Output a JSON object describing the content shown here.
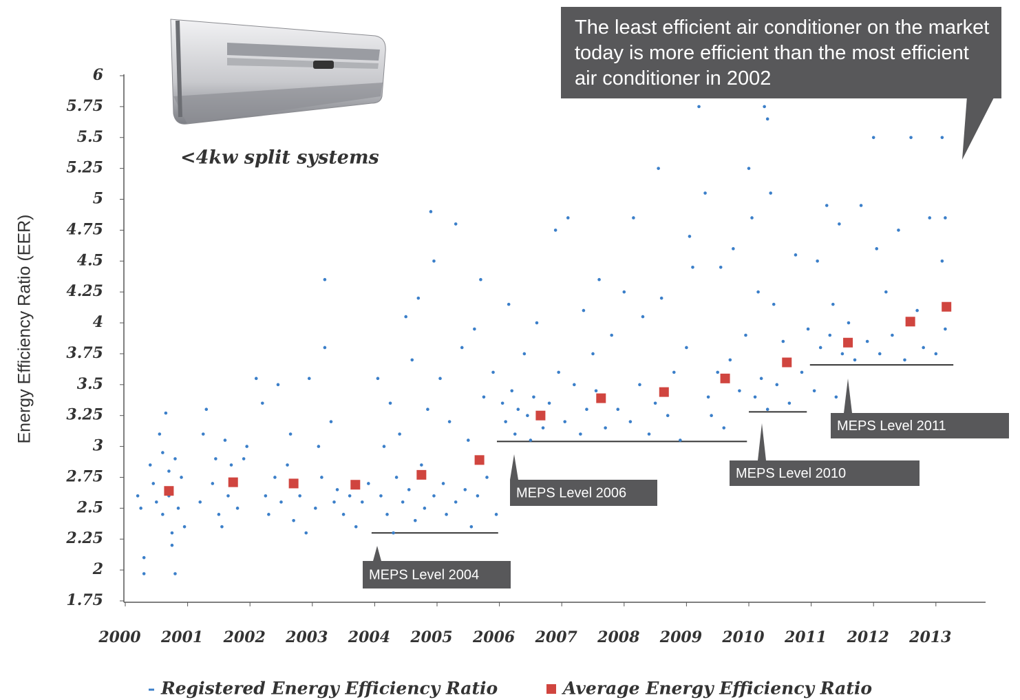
{
  "chart_data": {
    "type": "scatter",
    "annotation": "<4kw split systems",
    "callout": "The least efficient air conditioner on the market today is more efficient than the most efficient air conditioner in 2002",
    "y_label": "Energy Efficiency Ratio (EER)",
    "xlim": [
      2000,
      2013.8
    ],
    "xticks": [
      2000,
      2001,
      2002,
      2003,
      2004,
      2005,
      2006,
      2007,
      2008,
      2009,
      2010,
      2011,
      2012,
      2013
    ],
    "ylim": [
      1.75,
      6
    ],
    "yticks": [
      1.75,
      2,
      2.25,
      2.5,
      2.75,
      3,
      3.25,
      3.5,
      3.75,
      4,
      4.25,
      4.5,
      4.75,
      5,
      5.25,
      5.5,
      5.75,
      6
    ],
    "series": [
      {
        "name": "Registered Energy Efficiency Ratio",
        "color": "#3b7fc9",
        "marker": "dot",
        "x": [
          2000.2,
          2000.25,
          2000.3,
          2000.3,
          2000.4,
          2000.45,
          2000.5,
          2000.55,
          2000.6,
          2000.6,
          2000.65,
          2000.7,
          2000.7,
          2000.75,
          2000.75,
          2000.8,
          2000.8,
          2000.85,
          2000.9,
          2000.95,
          2001.2,
          2001.25,
          2001.3,
          2001.4,
          2001.45,
          2001.5,
          2001.55,
          2001.6,
          2001.65,
          2001.7,
          2001.8,
          2001.9,
          2001.95,
          2002.1,
          2002.2,
          2002.25,
          2002.3,
          2002.4,
          2002.45,
          2002.5,
          2002.6,
          2002.65,
          2002.7,
          2002.8,
          2002.9,
          2002.95,
          2003.05,
          2003.1,
          2003.15,
          2003.2,
          2003.2,
          2003.3,
          2003.35,
          2003.4,
          2003.5,
          2003.6,
          2003.7,
          2003.8,
          2003.9,
          2004.05,
          2004.1,
          2004.15,
          2004.2,
          2004.25,
          2004.3,
          2004.35,
          2004.4,
          2004.45,
          2004.5,
          2004.55,
          2004.6,
          2004.65,
          2004.7,
          2004.75,
          2004.8,
          2004.85,
          2004.9,
          2004.95,
          2004.95,
          2005.05,
          2005.1,
          2005.15,
          2005.2,
          2005.3,
          2005.3,
          2005.4,
          2005.45,
          2005.5,
          2005.55,
          2005.6,
          2005.65,
          2005.7,
          2005.75,
          2005.8,
          2005.9,
          2005.95,
          2006.05,
          2006.1,
          2006.15,
          2006.2,
          2006.25,
          2006.3,
          2006.4,
          2006.45,
          2006.5,
          2006.55,
          2006.6,
          2006.7,
          2006.8,
          2006.9,
          2006.95,
          2007.05,
          2007.1,
          2007.2,
          2007.3,
          2007.35,
          2007.4,
          2007.5,
          2007.55,
          2007.6,
          2007.7,
          2007.8,
          2007.9,
          2008.0,
          2008.1,
          2008.15,
          2008.25,
          2008.3,
          2008.4,
          2008.5,
          2008.55,
          2008.6,
          2008.7,
          2008.8,
          2008.9,
          2009.0,
          2009.05,
          2009.1,
          2009.2,
          2009.3,
          2009.35,
          2009.4,
          2009.5,
          2009.55,
          2009.6,
          2009.7,
          2009.75,
          2009.85,
          2009.95,
          2010.0,
          2010.05,
          2010.1,
          2010.15,
          2010.2,
          2010.25,
          2010.3,
          2010.3,
          2010.35,
          2010.4,
          2010.45,
          2010.55,
          2010.65,
          2010.75,
          2010.85,
          2010.95,
          2011.05,
          2011.1,
          2011.15,
          2011.25,
          2011.3,
          2011.35,
          2011.4,
          2011.45,
          2011.5,
          2011.6,
          2011.7,
          2011.8,
          2011.9,
          2012.0,
          2012.05,
          2012.1,
          2012.2,
          2012.3,
          2012.4,
          2012.5,
          2012.6,
          2012.7,
          2012.8,
          2012.9,
          2013.0,
          2013.1,
          2013.15,
          2013.1,
          2013.15
        ],
        "values": [
          2.6,
          2.5,
          2.1,
          1.97,
          2.85,
          2.7,
          2.55,
          3.1,
          2.95,
          2.45,
          3.27,
          2.8,
          2.6,
          2.3,
          2.2,
          1.97,
          2.9,
          2.5,
          2.75,
          2.35,
          2.55,
          3.1,
          3.3,
          2.7,
          2.9,
          2.45,
          2.35,
          3.05,
          2.6,
          2.85,
          2.5,
          2.9,
          3.0,
          3.55,
          3.35,
          2.6,
          2.45,
          2.75,
          3.5,
          2.55,
          2.85,
          3.1,
          2.4,
          2.6,
          2.3,
          3.55,
          2.5,
          3.0,
          2.75,
          3.8,
          4.35,
          3.2,
          2.55,
          2.65,
          2.45,
          2.6,
          2.35,
          2.55,
          2.7,
          3.55,
          2.6,
          3.0,
          2.45,
          3.35,
          2.3,
          2.75,
          3.1,
          2.55,
          4.05,
          2.65,
          3.7,
          2.4,
          4.2,
          2.85,
          2.5,
          3.3,
          4.9,
          4.5,
          2.6,
          3.55,
          2.7,
          2.45,
          3.2,
          4.8,
          2.55,
          3.8,
          2.65,
          3.05,
          2.35,
          3.95,
          2.6,
          4.35,
          3.4,
          2.75,
          3.6,
          2.45,
          3.35,
          3.2,
          4.15,
          3.45,
          3.1,
          3.3,
          3.75,
          3.25,
          3.05,
          3.4,
          4.0,
          3.15,
          3.35,
          4.75,
          3.6,
          3.2,
          4.85,
          3.5,
          3.1,
          4.1,
          3.3,
          3.75,
          3.45,
          4.35,
          3.15,
          3.9,
          3.3,
          4.25,
          3.2,
          4.85,
          3.5,
          4.05,
          3.1,
          3.35,
          5.25,
          4.2,
          3.25,
          3.6,
          3.05,
          3.8,
          4.7,
          4.45,
          5.75,
          5.05,
          3.4,
          3.25,
          3.6,
          4.45,
          3.15,
          3.7,
          4.6,
          3.45,
          3.9,
          5.25,
          4.85,
          3.4,
          4.25,
          3.55,
          5.75,
          5.65,
          3.3,
          5.05,
          4.15,
          3.5,
          3.85,
          3.35,
          4.55,
          3.6,
          3.95,
          3.45,
          4.5,
          3.8,
          4.95,
          3.9,
          4.15,
          3.4,
          4.8,
          3.75,
          4.0,
          3.7,
          4.95,
          3.85,
          5.5,
          4.6,
          3.75,
          4.25,
          3.9,
          4.75,
          3.7,
          5.5,
          4.1,
          3.8,
          4.85,
          3.75,
          5.5,
          4.85,
          4.5,
          3.95
        ]
      },
      {
        "name": "Average Energy Efficiency Ratio",
        "color": "#d0453f",
        "marker": "square",
        "x": [
          2000.7,
          2001.73,
          2002.7,
          2003.69,
          2004.75,
          2005.68,
          2006.66,
          2007.63,
          2008.64,
          2009.62,
          2010.61,
          2011.59,
          2012.59,
          2013.17
        ],
        "values": [
          2.64,
          2.71,
          2.7,
          2.69,
          2.77,
          2.89,
          3.25,
          3.39,
          3.44,
          3.55,
          3.68,
          3.84,
          4.01,
          4.13
        ]
      }
    ],
    "meps_levels": [
      {
        "label": "MEPS Level 2004",
        "value": 2.3,
        "x": [
          2003.95,
          2005.98
        ]
      },
      {
        "label": "MEPS Level 2006",
        "value": 3.04,
        "x": [
          2005.96,
          2009.97
        ]
      },
      {
        "label": "MEPS Level 2010",
        "value": 3.28,
        "x": [
          2010.0,
          2010.93
        ]
      },
      {
        "label": "MEPS Level 2011",
        "value": 3.66,
        "x": [
          2010.98,
          2013.28
        ]
      }
    ]
  }
}
